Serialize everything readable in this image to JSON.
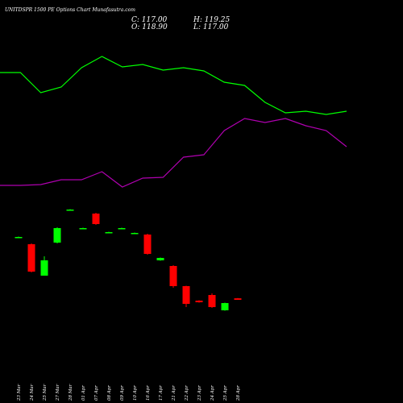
{
  "chart_data": {
    "type": "candlestick",
    "title": "UNITDSPR 1500 PE Options Chart Munafasutra.com",
    "close_label": "C: 117.00",
    "open_label": "O: 118.90",
    "high_label": "H: 119.25",
    "low_label": "L: 117.00",
    "categories": [
      "23 Mar",
      "24 Mar",
      "25 Mar",
      "27 Mar",
      "28 Mar",
      "01 Apr",
      "07 Apr",
      "08 Apr",
      "09 Apr",
      "10 Apr",
      "16 Apr",
      "17 Apr",
      "21 Apr",
      "22 Apr",
      "23 Apr",
      "24 Apr",
      "25 Apr",
      "28 Apr"
    ],
    "open": [
      195,
      186,
      147,
      188,
      229,
      206,
      224,
      201,
      206,
      200,
      198,
      166,
      159,
      134,
      116,
      123,
      104,
      118.9
    ],
    "high": [
      195.5,
      187,
      171,
      207,
      229.5,
      206.5,
      225,
      201.5,
      206.5,
      200.5,
      199,
      169.5,
      160,
      134.5,
      116.5,
      125,
      113.5,
      119.25
    ],
    "low": [
      194.5,
      151,
      147,
      187,
      228.5,
      205.5,
      210,
      200.5,
      205.5,
      199.5,
      173,
      165.5,
      132,
      108,
      113.5,
      107,
      103.5,
      117
    ],
    "close": [
      195,
      152,
      166,
      206,
      229,
      206,
      211,
      201,
      206,
      200,
      174,
      169,
      134,
      112,
      114,
      108,
      113,
      117
    ],
    "up_color": "#00ff00",
    "down_color": "#ff0000",
    "lines": [
      {
        "color": "#00ff00",
        "values": [
          399,
          399,
          374,
          381,
          405,
          419,
          406,
          409,
          402,
          405,
          401,
          387,
          383,
          362,
          349,
          351,
          347,
          351
        ]
      },
      {
        "color": "#b000b0",
        "values": [
          259,
          259,
          260,
          266,
          266,
          276,
          257,
          268,
          269,
          294,
          297,
          327,
          342,
          337,
          342,
          333,
          327,
          307
        ]
      }
    ],
    "ylim": [
      -11,
      489
    ]
  }
}
